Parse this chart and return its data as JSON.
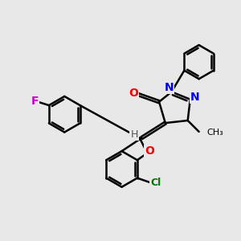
{
  "background_color": "#e8e8e8",
  "bond_color": "#000000",
  "bond_width": 1.8,
  "figsize": [
    3.0,
    3.0
  ],
  "dpi": 100,
  "atoms": {
    "O_color": "#ff0000",
    "N_color": "#0000ee",
    "Cl_color": "#007700",
    "F_color": "#cc00cc",
    "H_color": "#555555",
    "C_color": "#000000"
  },
  "xlim": [
    0.0,
    9.5
  ],
  "ylim": [
    1.0,
    9.5
  ]
}
